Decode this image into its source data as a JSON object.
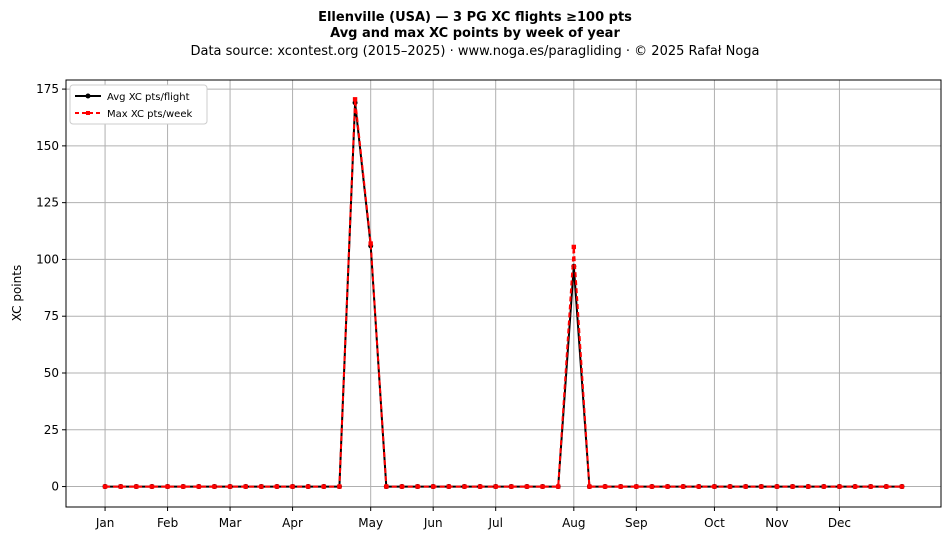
{
  "chart_data": {
    "type": "line",
    "title": "Ellenville (USA)  —  3 PG XC flights ≥100 pts",
    "subtitle": "Avg and max XC points by week of year",
    "source_line": "Data source: xcontest.org (2015–2025)  ·  www.noga.es/paragliding  ·  © 2025 Rafał Noga",
    "xlabel": "",
    "ylabel": "XC points",
    "xlim": [
      -1.5,
      54.5
    ],
    "ylim": [
      -9,
      179
    ],
    "yticks": [
      0,
      25,
      50,
      75,
      100,
      125,
      150,
      175
    ],
    "month_ticks": [
      {
        "label": "Jan",
        "week": 1
      },
      {
        "label": "Feb",
        "week": 5
      },
      {
        "label": "Mar",
        "week": 9
      },
      {
        "label": "Apr",
        "week": 13
      },
      {
        "label": "May",
        "week": 18
      },
      {
        "label": "Jun",
        "week": 22
      },
      {
        "label": "Jul",
        "week": 26
      },
      {
        "label": "Aug",
        "week": 31
      },
      {
        "label": "Sep",
        "week": 35
      },
      {
        "label": "Oct",
        "week": 40
      },
      {
        "label": "Nov",
        "week": 44
      },
      {
        "label": "Dec",
        "week": 48
      }
    ],
    "grid": true,
    "legend_position": "top-left",
    "x": [
      1,
      2,
      3,
      4,
      5,
      6,
      7,
      8,
      9,
      10,
      11,
      12,
      13,
      14,
      15,
      16,
      17,
      18,
      19,
      20,
      21,
      22,
      23,
      24,
      25,
      26,
      27,
      28,
      29,
      30,
      31,
      32,
      33,
      34,
      35,
      36,
      37,
      38,
      39,
      40,
      41,
      42,
      43,
      44,
      45,
      46,
      47,
      48,
      49,
      50,
      51,
      52
    ],
    "series": [
      {
        "name": "Avg XC pts/flight",
        "color": "#000000",
        "style": "solid",
        "marker": "circle",
        "values": [
          0,
          0,
          0,
          0,
          0,
          0,
          0,
          0,
          0,
          0,
          0,
          0,
          0,
          0,
          0,
          0,
          169,
          106,
          0,
          0,
          0,
          0,
          0,
          0,
          0,
          0,
          0,
          0,
          0,
          0,
          97,
          0,
          0,
          0,
          0,
          0,
          0,
          0,
          0,
          0,
          0,
          0,
          0,
          0,
          0,
          0,
          0,
          0,
          0,
          0,
          0,
          0
        ]
      },
      {
        "name": "Max XC pts/week",
        "color": "#ff0000",
        "style": "dashed",
        "marker": "square",
        "values": [
          0,
          0,
          0,
          0,
          0,
          0,
          0,
          0,
          0,
          0,
          0,
          0,
          0,
          0,
          0,
          0,
          170.5,
          107,
          0,
          0,
          0,
          0,
          0,
          0,
          0,
          0,
          0,
          0,
          0,
          0,
          105.5,
          0,
          0,
          0,
          0,
          0,
          0,
          0,
          0,
          0,
          0,
          0,
          0,
          0,
          0,
          0,
          0,
          0,
          0,
          0,
          0,
          0
        ]
      }
    ]
  }
}
